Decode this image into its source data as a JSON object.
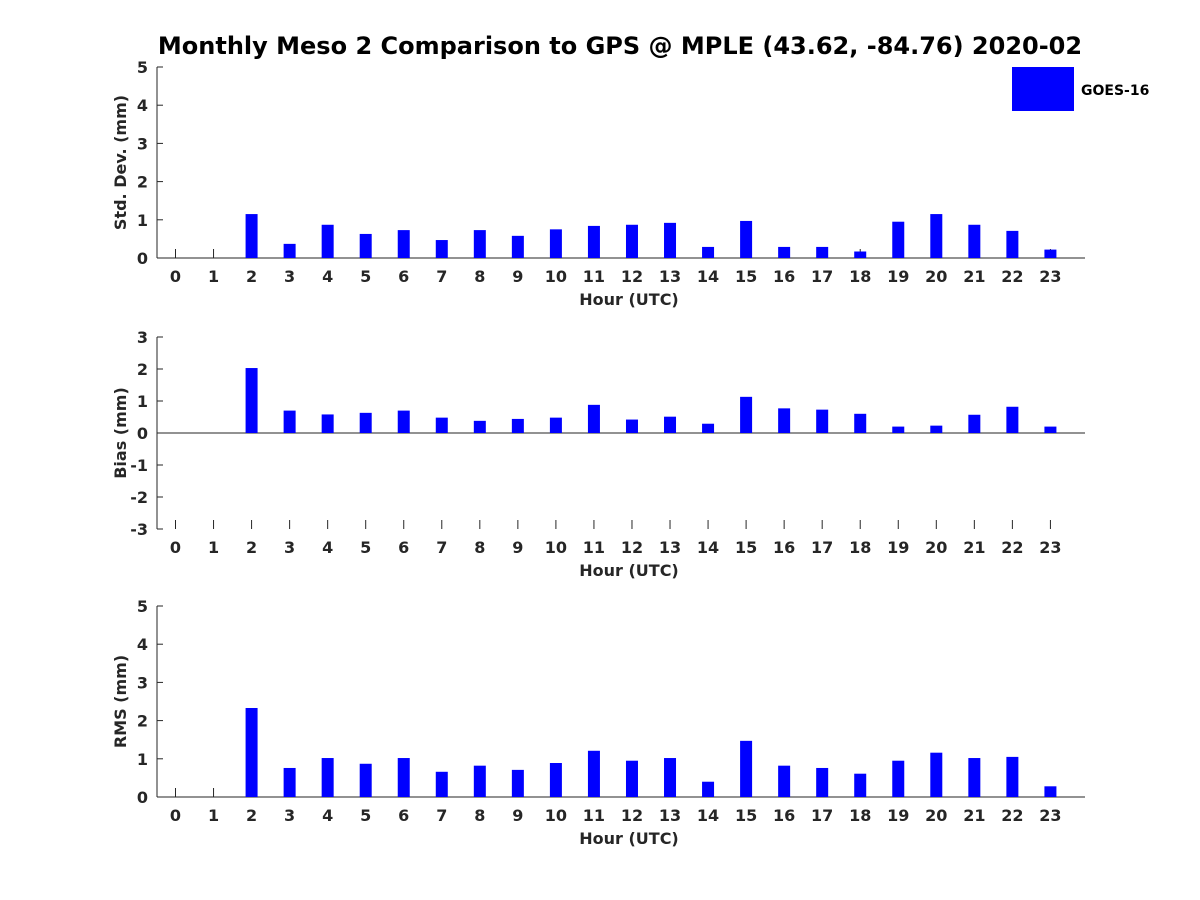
{
  "chart_data": {
    "title": "Monthly Meso 2 Comparison to GPS @ MPLE (43.62, -84.76) 2020-02",
    "legend": {
      "entries": [
        "GOES-16"
      ],
      "placement": "top-right",
      "color": "#0000ff"
    },
    "bar_color": "#0000ff",
    "panels": [
      {
        "type": "bar",
        "name": "std_dev",
        "xlabel": "Hour (UTC)",
        "ylabel": "Std. Dev. (mm)",
        "ylim": [
          0,
          5
        ],
        "yticks": [
          "0",
          "1",
          "2",
          "3",
          "4",
          "5"
        ],
        "categories": [
          "0",
          "1",
          "2",
          "3",
          "4",
          "5",
          "6",
          "7",
          "8",
          "9",
          "10",
          "11",
          "12",
          "13",
          "14",
          "15",
          "16",
          "17",
          "18",
          "19",
          "20",
          "21",
          "22",
          "23"
        ],
        "series": [
          {
            "name": "GOES-16",
            "values": [
              0,
              0,
              1.15,
              0.37,
              0.87,
              0.63,
              0.73,
              0.47,
              0.73,
              0.58,
              0.75,
              0.84,
              0.87,
              0.92,
              0.29,
              0.97,
              0.29,
              0.29,
              0.17,
              0.95,
              1.15,
              0.87,
              0.71,
              0.22
            ]
          }
        ],
        "grid": false
      },
      {
        "type": "bar",
        "name": "bias",
        "xlabel": "Hour (UTC)",
        "ylabel": "Bias (mm)",
        "ylim": [
          -3,
          3
        ],
        "yticks": [
          "-3",
          "-2",
          "-1",
          "0",
          "1",
          "2",
          "3"
        ],
        "categories": [
          "0",
          "1",
          "2",
          "3",
          "4",
          "5",
          "6",
          "7",
          "8",
          "9",
          "10",
          "11",
          "12",
          "13",
          "14",
          "15",
          "16",
          "17",
          "18",
          "19",
          "20",
          "21",
          "22",
          "23"
        ],
        "series": [
          {
            "name": "GOES-16",
            "values": [
              0,
              0,
              2.03,
              0.7,
              0.58,
              0.63,
              0.7,
              0.48,
              0.38,
              0.44,
              0.48,
              0.88,
              0.42,
              0.51,
              0.29,
              1.13,
              0.77,
              0.73,
              0.6,
              0.2,
              0.23,
              0.57,
              0.82,
              0.2
            ]
          }
        ],
        "grid": false
      },
      {
        "type": "bar",
        "name": "rms",
        "xlabel": "Hour (UTC)",
        "ylabel": "RMS (mm)",
        "ylim": [
          0,
          5
        ],
        "yticks": [
          "0",
          "1",
          "2",
          "3",
          "4",
          "5"
        ],
        "categories": [
          "0",
          "1",
          "2",
          "3",
          "4",
          "5",
          "6",
          "7",
          "8",
          "9",
          "10",
          "11",
          "12",
          "13",
          "14",
          "15",
          "16",
          "17",
          "18",
          "19",
          "20",
          "21",
          "22",
          "23"
        ],
        "series": [
          {
            "name": "GOES-16",
            "values": [
              0,
              0,
              2.33,
              0.76,
              1.02,
              0.87,
              1.02,
              0.66,
              0.82,
              0.71,
              0.89,
              1.21,
              0.95,
              1.02,
              0.4,
              1.47,
              0.82,
              0.76,
              0.61,
              0.95,
              1.16,
              1.02,
              1.05,
              0.28
            ]
          }
        ],
        "grid": false
      }
    ]
  }
}
